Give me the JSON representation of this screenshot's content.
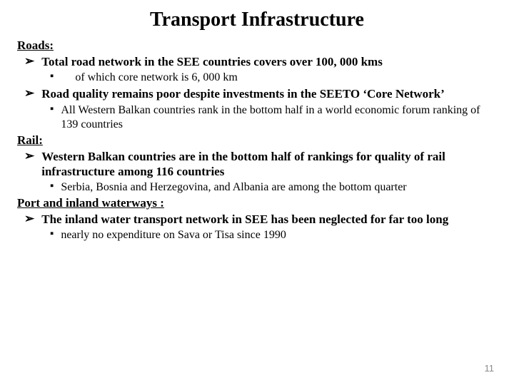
{
  "title": "Transport Infrastructure",
  "page_number": "11",
  "bullets": {
    "lvl1": "➢",
    "lvl2": "▪"
  },
  "colors": {
    "bg": "#ffffff",
    "text": "#000000",
    "pagenum": "#8b8b8b"
  },
  "fonts": {
    "body": "Times New Roman",
    "pagenum": "Arial"
  },
  "sections": {
    "roads": {
      "heading": "Roads:",
      "item1": "Total road network in the SEE countries covers over 100, 000 kms",
      "item1_sub": "of which core network is 6, 000 km",
      "item2": "Road quality remains poor despite investments in the SEETO ‘Core Network’",
      "item2_sub": "All Western Balkan countries rank in the bottom half in a world economic forum ranking of 139 countries"
    },
    "rail": {
      "heading": "Rail:",
      "item1": "Western Balkan countries are in the bottom half of rankings for quality of rail infrastructure among 116 countries",
      "item1_sub": "Serbia, Bosnia and Herzegovina, and Albania are among the bottom quarter"
    },
    "port": {
      "heading": "Port and inland waterways :",
      "item1": "The inland water transport network in SEE has been neglected for far too long",
      "item1_sub": "nearly no expenditure on Sava or Tisa since 1990"
    }
  }
}
